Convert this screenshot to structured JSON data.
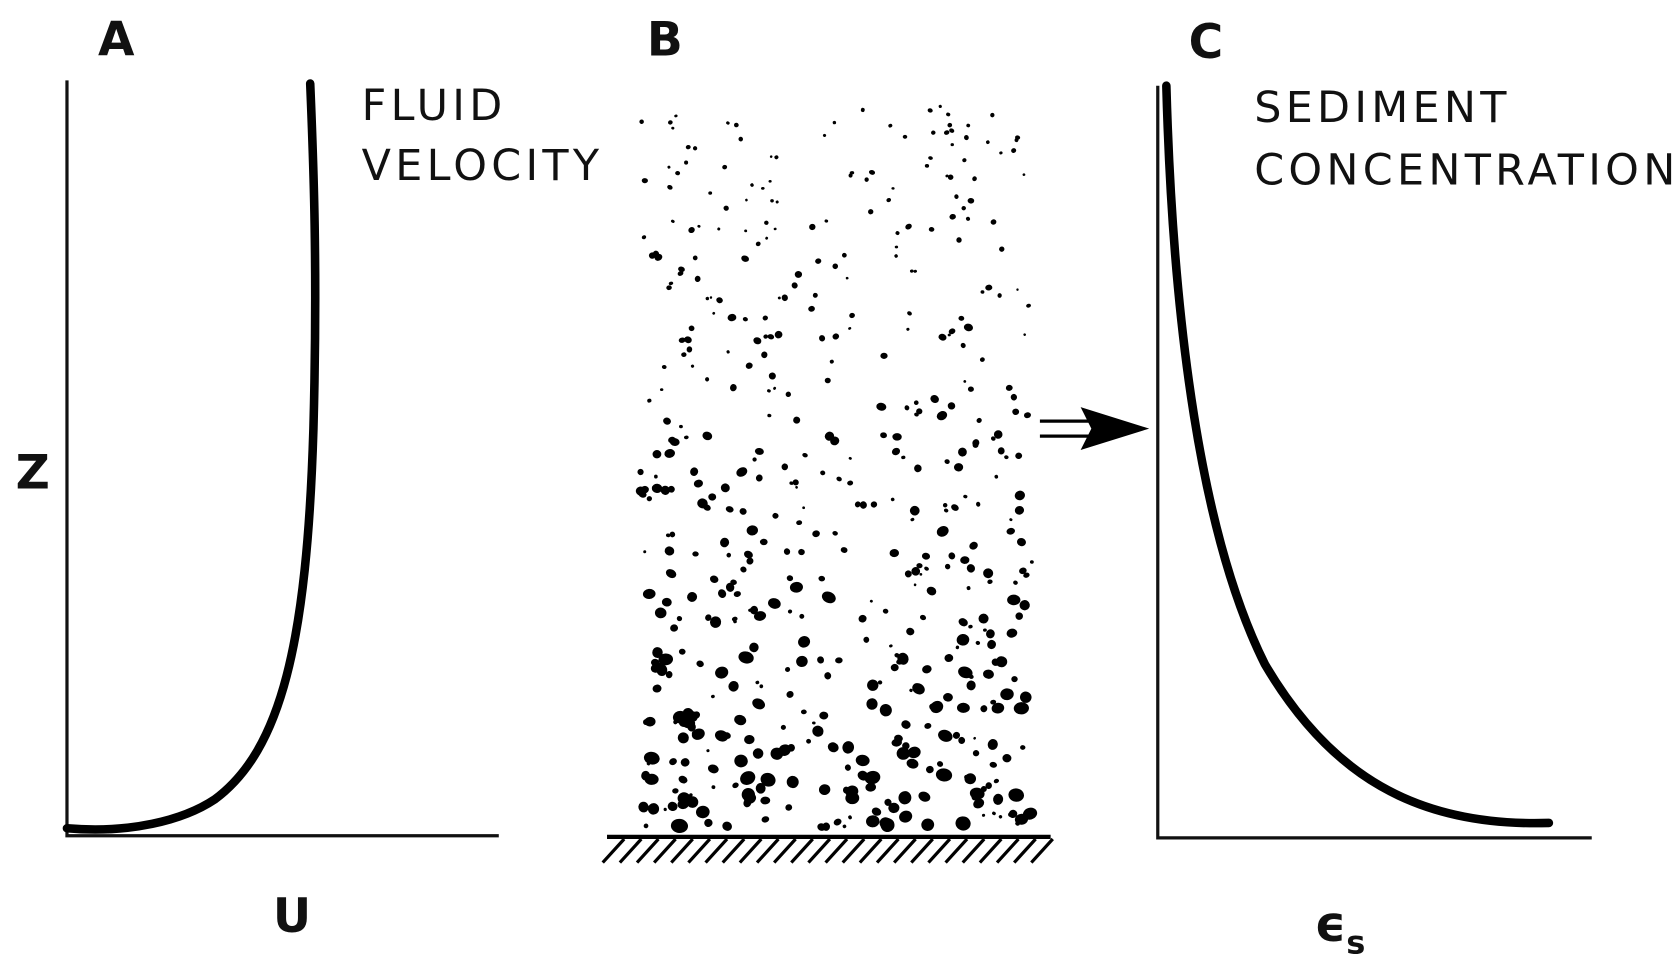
{
  "panels": [
    {
      "label": "A",
      "title": [
        "FLUID",
        "VELOCITY"
      ],
      "y_axis": "Z",
      "x_axis": "U"
    },
    {
      "label": "B"
    },
    {
      "label": "C",
      "title": [
        "SEDIMENT",
        "CONCENTRATION"
      ],
      "x_axis": {
        "symbol": "ϵ",
        "subscript": "s"
      }
    }
  ]
}
